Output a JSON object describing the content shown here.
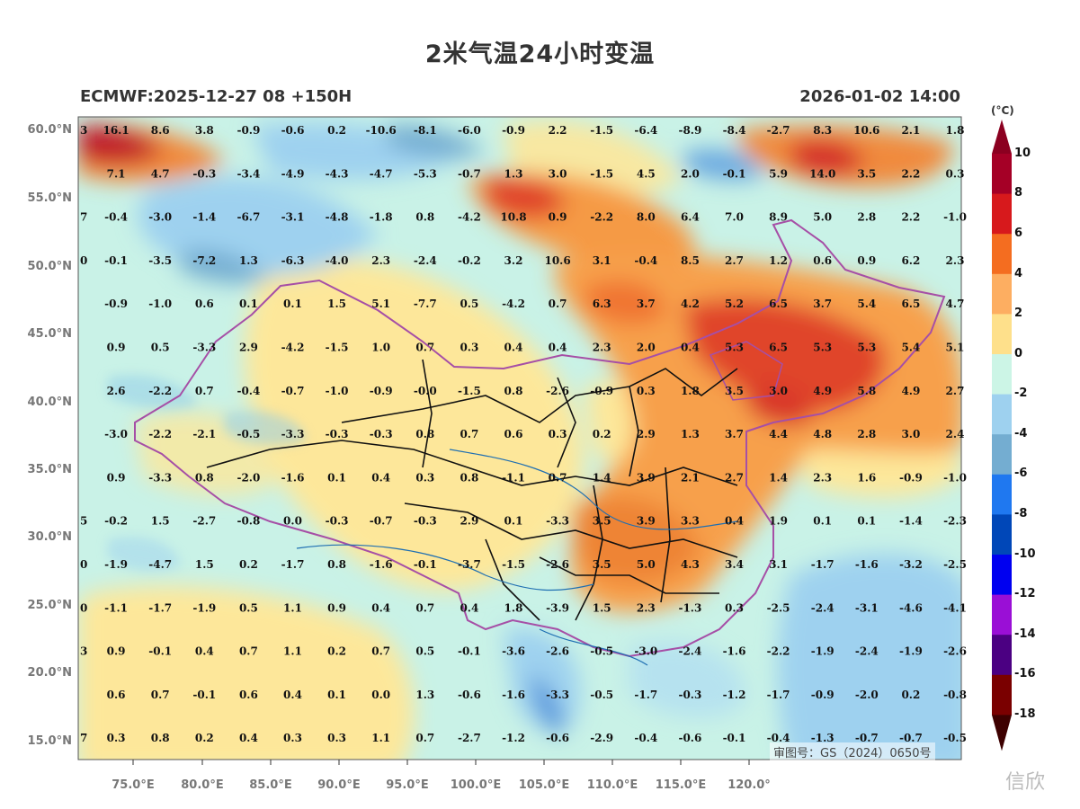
{
  "header": {
    "title": "2米气温24小时变温",
    "model_run": "ECMWF:2025-12-27 08 +150H",
    "valid_time": "2026-01-02 14:00"
  },
  "lat_labels": [
    "60.0°N",
    "55.0°N",
    "50.0°N",
    "45.0°N",
    "40.0°N",
    "35.0°N",
    "30.0°N",
    "25.0°N",
    "20.0°N",
    "15.0°N"
  ],
  "lon_labels": [
    "75.0°E",
    "80.0°E",
    "85.0°E",
    "90.0°E",
    "95.0°E",
    "100.0°E",
    "105.0°E",
    "110.0°E",
    "115.0°E",
    "120.0°"
  ],
  "stamp": "审图号：GS（2024）0650号",
  "watermark": "信欣",
  "colorbar": {
    "unit": "(°C)",
    "ticks": [
      "10",
      "8",
      "6",
      "4",
      "2",
      "0",
      "-2",
      "-4",
      "-6",
      "-8",
      "-10",
      "-12",
      "-14",
      "-16",
      "-18"
    ],
    "colors": [
      "#a50026",
      "#d7191c",
      "#f46d20",
      "#fdae61",
      "#fee08b",
      "#ccf5e6",
      "#9ed1ef",
      "#74add1",
      "#1f78f0",
      "#0047b8",
      "#0000f0",
      "#9a0fd6",
      "#4b0082",
      "#7a0000"
    ],
    "top_color": "#8b0020",
    "bottom_color": "#3d0000"
  },
  "grid_values": [
    [
      "3",
      "16.1",
      "8.6",
      "3.8",
      "-0.9",
      "-0.6",
      "0.2",
      "-10.6",
      "-8.1",
      "-6.0",
      "-0.9",
      "2.2",
      "-1.5",
      "-6.4",
      "-8.9",
      "-8.4",
      "-2.7",
      "8.3",
      "10.6",
      "2.1",
      "1.8"
    ],
    [
      "",
      "7.1",
      "4.7",
      "-0.3",
      "-3.4",
      "-4.9",
      "-4.3",
      "-4.7",
      "-5.3",
      "-0.7",
      "1.3",
      "3.0",
      "-1.5",
      "4.5",
      "2.0",
      "-0.1",
      "5.9",
      "14.0",
      "3.5",
      "2.2",
      "0.3"
    ],
    [
      "7",
      "-0.4",
      "-3.0",
      "-1.4",
      "-6.7",
      "-3.1",
      "-4.8",
      "-1.8",
      "0.8",
      "-4.2",
      "10.8",
      "0.9",
      "-2.2",
      "8.0",
      "6.4",
      "7.0",
      "8.9",
      "5.0",
      "2.8",
      "2.2",
      "-1.0"
    ],
    [
      "0",
      "-0.1",
      "-3.5",
      "-7.2",
      "1.3",
      "-6.3",
      "-4.0",
      "2.3",
      "-2.4",
      "-0.2",
      "3.2",
      "10.6",
      "3.1",
      "-0.4",
      "8.5",
      "2.7",
      "1.2",
      "0.6",
      "0.9",
      "6.2",
      "2.3"
    ],
    [
      "",
      "-0.9",
      "-1.0",
      "0.6",
      "0.1",
      "0.1",
      "1.5",
      "5.1",
      "-7.7",
      "0.5",
      "-4.2",
      "0.7",
      "6.3",
      "3.7",
      "4.2",
      "5.2",
      "6.5",
      "3.7",
      "5.4",
      "6.5",
      "4.7"
    ],
    [
      "",
      "0.9",
      "0.5",
      "-3.3",
      "2.9",
      "-4.2",
      "-1.5",
      "1.0",
      "0.7",
      "0.3",
      "0.4",
      "0.4",
      "2.3",
      "2.0",
      "0.4",
      "5.3",
      "6.5",
      "5.3",
      "5.3",
      "5.4",
      "5.1"
    ],
    [
      "",
      "2.6",
      "-2.2",
      "0.7",
      "-0.4",
      "-0.7",
      "-1.0",
      "-0.9",
      "-0.0",
      "-1.5",
      "0.8",
      "-2.6",
      "-0.9",
      "0.3",
      "1.8",
      "3.5",
      "3.0",
      "4.9",
      "5.8",
      "4.9",
      "2.7"
    ],
    [
      "",
      "-3.0",
      "-2.2",
      "-2.1",
      "-0.5",
      "-3.3",
      "-0.3",
      "-0.3",
      "0.8",
      "0.7",
      "0.6",
      "0.3",
      "0.2",
      "2.9",
      "1.3",
      "3.7",
      "4.4",
      "4.8",
      "2.8",
      "3.0",
      "2.4"
    ],
    [
      "",
      "0.9",
      "-3.3",
      "0.8",
      "-2.0",
      "-1.6",
      "0.1",
      "0.4",
      "0.3",
      "0.8",
      "-1.1",
      "0.7",
      "1.4",
      "3.9",
      "2.1",
      "2.7",
      "1.4",
      "2.3",
      "1.6",
      "-0.9",
      "-1.0"
    ],
    [
      "5",
      "-0.2",
      "1.5",
      "-2.7",
      "-0.8",
      "0.0",
      "-0.3",
      "-0.7",
      "-0.3",
      "2.9",
      "0.1",
      "-3.3",
      "3.5",
      "3.9",
      "3.3",
      "0.4",
      "1.9",
      "0.1",
      "0.1",
      "-1.4",
      "-2.3"
    ],
    [
      "0",
      "-1.9",
      "-4.7",
      "1.5",
      "0.2",
      "-1.7",
      "0.8",
      "-1.6",
      "-0.1",
      "-3.7",
      "-1.5",
      "-2.6",
      "3.5",
      "5.0",
      "4.3",
      "3.4",
      "3.1",
      "-1.7",
      "-1.6",
      "-3.2",
      "-2.5"
    ],
    [
      "0",
      "-1.1",
      "-1.7",
      "-1.9",
      "0.5",
      "1.1",
      "0.9",
      "0.4",
      "0.7",
      "0.4",
      "1.8",
      "-3.9",
      "1.5",
      "2.3",
      "-1.3",
      "0.3",
      "-2.5",
      "-2.4",
      "-3.1",
      "-4.6",
      "-4.1"
    ],
    [
      "3",
      "0.9",
      "-0.1",
      "0.4",
      "0.7",
      "1.1",
      "0.2",
      "0.7",
      "0.5",
      "-0.1",
      "-3.6",
      "-2.6",
      "-0.5",
      "-3.0",
      "-2.4",
      "-1.6",
      "-2.2",
      "-1.9",
      "-2.4",
      "-1.9",
      "-2.6"
    ],
    [
      "",
      "0.6",
      "0.7",
      "-0.1",
      "0.6",
      "0.4",
      "0.1",
      "0.0",
      "1.3",
      "-0.6",
      "-1.6",
      "-3.3",
      "-0.5",
      "-1.7",
      "-0.3",
      "-1.2",
      "-1.7",
      "-0.9",
      "-2.0",
      "0.2",
      "-0.8"
    ],
    [
      "7",
      "0.3",
      "0.8",
      "0.2",
      "0.4",
      "0.3",
      "0.3",
      "1.1",
      "0.7",
      "-2.7",
      "-1.2",
      "-0.6",
      "-2.9",
      "-0.4",
      "-0.6",
      "-0.1",
      "-0.4",
      "-1.3",
      "-0.7",
      "-0.7",
      "-0.5"
    ]
  ]
}
